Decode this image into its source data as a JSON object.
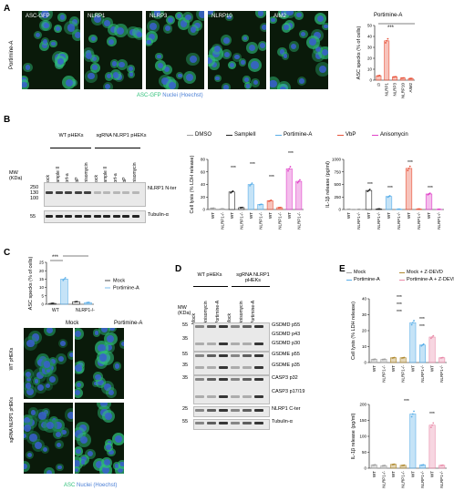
{
  "panels": {
    "A": {
      "letter": "A",
      "row_label": "Portimine-A",
      "image_titles": [
        "ASC-GFP",
        "NLRP1",
        "NLRP3",
        "NLRP10",
        "AIM2"
      ],
      "caption_asc": "ASC-GFP",
      "caption_nuclei": "Nuclei (Hoechst)",
      "chart_title": "Portimine-A",
      "ylabel": "ASC specks (% of cells)",
      "sig": "***",
      "colors": {
        "asc": "#2fc07a",
        "nuclei": "#4a7fd6",
        "bar": "#e8543b"
      }
    },
    "B": {
      "letter": "B",
      "blot_groups": [
        "WT pHEKs",
        "sgRNA NLRP1 pHEKs"
      ],
      "lanes": [
        "Mock",
        "Sample II",
        "Port-a",
        "VbP",
        "Anisomycin",
        "Mock",
        "Sample II",
        "Port-a",
        "VbP",
        "Anisomycin"
      ],
      "mw_title": "MW (KDa)",
      "mw_top": [
        "250",
        "130",
        "100"
      ],
      "mw_bottom": "55",
      "band_labels": [
        "NLRP1 N-ter",
        "Tubulin-α"
      ],
      "legend": [
        "DMSO",
        "SampleII",
        "Portimine-A",
        "VbP",
        "Anisomycin"
      ],
      "legend_colors": [
        "#a0a0a0",
        "#222222",
        "#5aaee8",
        "#e8543b",
        "#e042c8"
      ],
      "chart1_ylabel": "Cell lysis (% LDH release)",
      "chart2_ylabel": "IL-1β release (pg/ml)",
      "xlabels": [
        "WT",
        "NLRP1-/-"
      ],
      "sig": "***"
    },
    "C": {
      "letter": "C",
      "ylabel": "ASC specks (% of cells)",
      "legend": [
        "Mock",
        "Portimine-A"
      ],
      "xlabels": [
        "WT",
        "NLRP1-/-"
      ],
      "sig": "***",
      "col_titles": [
        "Mock",
        "Portimine-A"
      ],
      "row_labels": [
        "WT pHEKs",
        "sgRNA NLRP1 pHEKs"
      ],
      "caption_asc": "ASC",
      "caption_nuclei": "Nuclei (Hoechst)"
    },
    "D": {
      "letter": "D",
      "groups": [
        "WT pHEKs",
        "sgRNA NLRP1 pHEKs"
      ],
      "lanes": [
        "Mock",
        "Anisomycin",
        "Portimine-A",
        "Mock",
        "Anisomycin",
        "Portimine-A"
      ],
      "mw_title": "MW (KDa)",
      "mw_marks": [
        "55",
        "35",
        "55",
        "35",
        "35",
        "25",
        "55"
      ],
      "band_labels": [
        "GSDMD p55",
        "GSDMD p43",
        "GSDMD p30",
        "GSDME p55",
        "GSDME p35",
        "CASP3 p32",
        "CASP3 p17/19",
        "NLRP1 C-ter",
        "Tubulin-α"
      ]
    },
    "E": {
      "letter": "E",
      "legend": [
        "Mock",
        "Portimine-A",
        "Mock + Z-DEVD",
        "Portimine-A + Z-DEVD"
      ],
      "legend_colors": [
        "#a0a0a0",
        "#5aaee8",
        "#b08a30",
        "#e98aa8"
      ],
      "chart1_ylabel": "Cell lysis (% LDH release)",
      "chart2_ylabel": "IL-1β release (pg/ml)",
      "xlabels": [
        "WT",
        "NLRP1-/-",
        "WT",
        "NLRP1-/-",
        "WT",
        "NLRP1-/-",
        "WT",
        "NLRP1-/-"
      ],
      "sig": "***"
    }
  },
  "chart_data": [
    {
      "id": "A",
      "type": "bar",
      "title": "Portimine-A",
      "ylabel": "ASC specks (% of cells)",
      "categories": [
        "∅",
        "NLRP1",
        "NLRP3",
        "NLRP10",
        "AIM2"
      ],
      "values": [
        4,
        36,
        3,
        2,
        1.5
      ],
      "ylim": [
        0,
        50
      ],
      "yticks": [
        0,
        10,
        20,
        30,
        40,
        50
      ]
    },
    {
      "id": "B-lysis",
      "type": "bar",
      "ylabel": "Cell lysis (% LDH release)",
      "categories": [
        "WT",
        "NLRP1-/-",
        "WT",
        "NLRP1-/-",
        "WT",
        "NLRP1-/-",
        "WT",
        "NLRP1-/-",
        "WT",
        "NLRP1-/-"
      ],
      "values": [
        2,
        1,
        28,
        3,
        40,
        8,
        14,
        3,
        65,
        45
      ],
      "ylim": [
        0,
        80
      ],
      "yticks": [
        0,
        20,
        40,
        60,
        80
      ]
    },
    {
      "id": "B-il1b",
      "type": "bar",
      "ylabel": "IL-1β release (pg/ml)",
      "categories": [
        "WT",
        "NLRP1-/-",
        "WT",
        "NLRP1-/-",
        "WT",
        "NLRP1-/-",
        "WT",
        "NLRP1-/-",
        "WT",
        "NLRP1-/-"
      ],
      "values": [
        5,
        3,
        380,
        10,
        260,
        6,
        820,
        8,
        310,
        4
      ],
      "ylim": [
        0,
        1000
      ],
      "yticks": [
        0,
        250,
        500,
        750,
        1000
      ]
    },
    {
      "id": "C",
      "type": "bar",
      "ylabel": "ASC specks (% of cells)",
      "categories": [
        "WT",
        "NLRP1-/-"
      ],
      "series": [
        {
          "name": "Mock",
          "values": [
            0.5,
            1.5
          ]
        },
        {
          "name": "Portimine-A",
          "values": [
            15,
            1
          ]
        }
      ],
      "ylim": [
        0,
        25
      ],
      "yticks": [
        0,
        5,
        10,
        15,
        20,
        25
      ]
    },
    {
      "id": "E-lysis",
      "type": "bar",
      "ylabel": "Cell lysis (% LDH release)",
      "categories": [
        "WT",
        "NLRP1-/-",
        "WT",
        "NLRP1-/-",
        "WT",
        "NLRP1-/-",
        "WT",
        "NLRP1-/-"
      ],
      "values": [
        2,
        2,
        3,
        3,
        25,
        11,
        16,
        3
      ],
      "ylim": [
        0,
        40
      ],
      "yticks": [
        0,
        10,
        20,
        30,
        40
      ]
    },
    {
      "id": "E-il1b",
      "type": "bar",
      "ylabel": "IL-1β release (pg/ml)",
      "categories": [
        "WT",
        "NLRP1-/-",
        "WT",
        "NLRP1-/-",
        "WT",
        "NLRP1-/-",
        "WT",
        "NLRP1-/-"
      ],
      "values": [
        10,
        8,
        12,
        9,
        170,
        10,
        135,
        9
      ],
      "ylim": [
        0,
        200
      ],
      "yticks": [
        0,
        50,
        100,
        150,
        200
      ]
    }
  ]
}
